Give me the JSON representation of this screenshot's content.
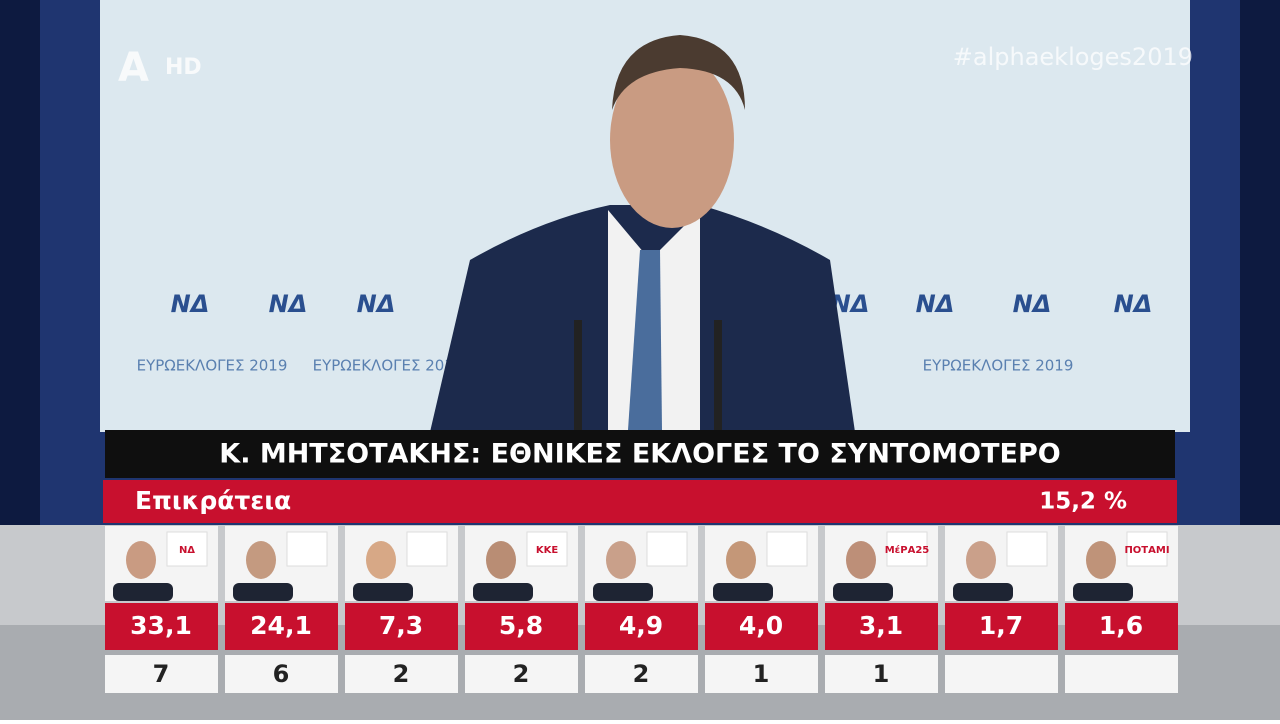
{
  "channel": {
    "logo": "HD",
    "hashtag": "#alphaekloges2019"
  },
  "backdrop": {
    "party_mark": "ΝΔ",
    "event": "ΕΥΡΩΕΚΛΟΓΕΣ 2019"
  },
  "headline": "Κ. ΜΗΤΣΟΤΑΚΗΣ: ΕΘΝΙΚΕΣ ΕΚΛΟΓΕΣ ΤΟ ΣΥΝΤΟΜΟΤΕΡΟ",
  "results_bar": {
    "region": "Επικράτεια",
    "counted": "15,2 %"
  },
  "parties": [
    {
      "logo": "ΝΔ",
      "percent": "33,1",
      "seats": 7
    },
    {
      "percent": "24,1",
      "seats": 6
    },
    {
      "percent": "7,3",
      "seats": 2
    },
    {
      "logo": "ΚΚΕ",
      "percent": "5,8",
      "seats": 2
    },
    {
      "percent": "4,9",
      "seats": 2
    },
    {
      "percent": "4,0",
      "seats": 1
    },
    {
      "logo": "ΜέΡΑ25",
      "percent": "3,1",
      "seats": 1
    },
    {
      "percent": "1,7",
      "seats": null
    },
    {
      "logo": "ΠΟΤΑΜΙ",
      "percent": "1,6",
      "seats": null
    }
  ]
}
